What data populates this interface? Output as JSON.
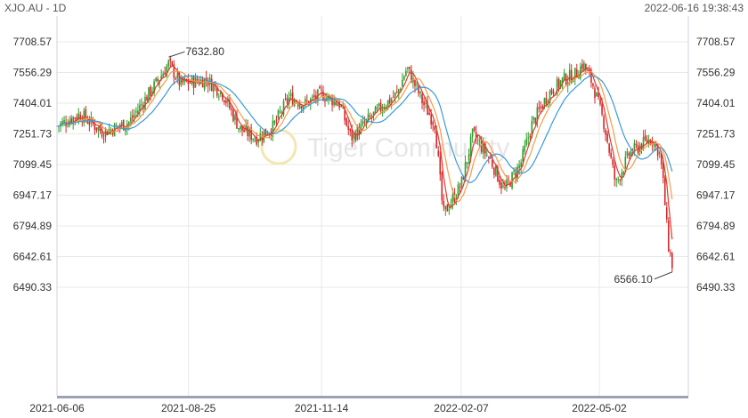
{
  "header": {
    "title": "XJO.AU - 1D",
    "timestamp": "2022-06-16 19:38:43"
  },
  "watermark": "Tiger Community",
  "colors": {
    "up": "#2ca02c",
    "down": "#d62728",
    "ma_short": "#e03a2a",
    "ma_mid": "#f39c4b",
    "ma_long": "#3a9ad9",
    "grid": "#e8e8e8",
    "axis": "#9aa3b5"
  },
  "chart_data": {
    "type": "candlestick",
    "title": "XJO.AU - 1D",
    "y_ticks": [
      "7708.57",
      "7556.29",
      "7404.01",
      "7251.73",
      "7099.45",
      "6947.17",
      "6794.89",
      "6642.61",
      "6490.33"
    ],
    "y_range": [
      6490.33,
      7708.57
    ],
    "x_ticks": [
      "2021-06-06",
      "2021-08-25",
      "2021-11-14",
      "2022-02-07",
      "2022-05-02"
    ],
    "annotations": [
      {
        "label": "7632.80",
        "date": "2021-08-13",
        "value": 7632.8
      },
      {
        "label": "6566.10",
        "date": "2022-06-16",
        "value": 6566.1
      }
    ],
    "close_path": [
      [
        "2021-06-06",
        7290
      ],
      [
        "2021-06-20",
        7350
      ],
      [
        "2021-07-04",
        7260
      ],
      [
        "2021-07-20",
        7310
      ],
      [
        "2021-08-05",
        7500
      ],
      [
        "2021-08-13",
        7600
      ],
      [
        "2021-08-20",
        7500
      ],
      [
        "2021-09-05",
        7520
      ],
      [
        "2021-09-15",
        7450
      ],
      [
        "2021-09-25",
        7280
      ],
      [
        "2021-10-05",
        7230
      ],
      [
        "2021-10-15",
        7280
      ],
      [
        "2021-10-25",
        7430
      ],
      [
        "2021-11-04",
        7400
      ],
      [
        "2021-11-14",
        7450
      ],
      [
        "2021-11-25",
        7400
      ],
      [
        "2021-12-02",
        7230
      ],
      [
        "2021-12-10",
        7300
      ],
      [
        "2021-12-20",
        7380
      ],
      [
        "2021-12-30",
        7450
      ],
      [
        "2022-01-05",
        7580
      ],
      [
        "2022-01-15",
        7400
      ],
      [
        "2022-01-22",
        7300
      ],
      [
        "2022-01-27",
        6850
      ],
      [
        "2022-02-07",
        7000
      ],
      [
        "2022-02-14",
        7250
      ],
      [
        "2022-02-25",
        7120
      ],
      [
        "2022-03-05",
        6970
      ],
      [
        "2022-03-15",
        7100
      ],
      [
        "2022-03-22",
        7300
      ],
      [
        "2022-04-01",
        7450
      ],
      [
        "2022-04-10",
        7520
      ],
      [
        "2022-04-18",
        7550
      ],
      [
        "2022-04-22",
        7600
      ],
      [
        "2022-04-28",
        7500
      ],
      [
        "2022-05-05",
        7300
      ],
      [
        "2022-05-12",
        7000
      ],
      [
        "2022-05-20",
        7150
      ],
      [
        "2022-05-28",
        7200
      ],
      [
        "2022-06-03",
        7230
      ],
      [
        "2022-06-08",
        7150
      ],
      [
        "2022-06-10",
        7000
      ],
      [
        "2022-06-13",
        6700
      ],
      [
        "2022-06-16",
        6580
      ]
    ],
    "moving_averages": [
      {
        "color_key": "ma_short",
        "period": 5
      },
      {
        "color_key": "ma_mid",
        "period": 10
      },
      {
        "color_key": "ma_long",
        "period": 20
      }
    ]
  }
}
